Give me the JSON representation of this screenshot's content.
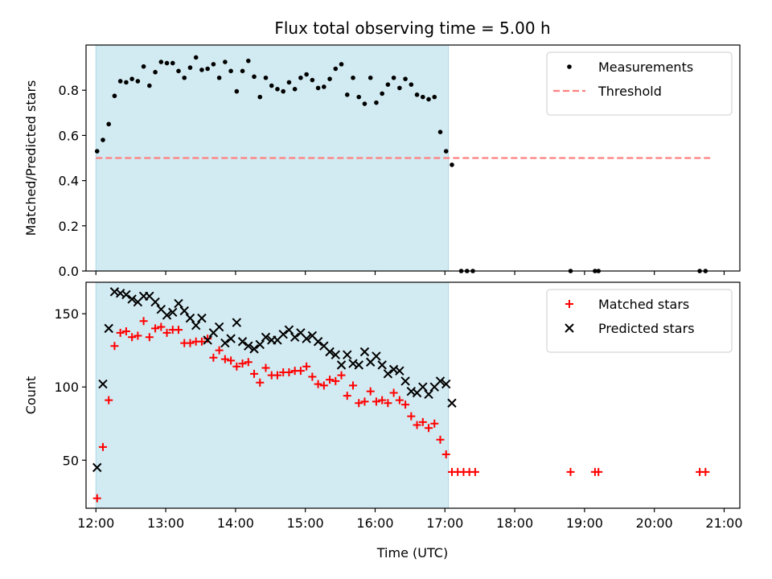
{
  "chart_data": {
    "title": "Flux total observing time = 5.00 h",
    "xlabel": "Time (UTC)",
    "x_tick_labels": [
      "12:00",
      "13:00",
      "14:00",
      "15:00",
      "16:00",
      "17:00",
      "18:00",
      "19:00",
      "20:00",
      "21:00"
    ],
    "shaded_region": {
      "start": "12:00",
      "end": "17:03",
      "color": "#add8e6"
    },
    "panels": [
      {
        "type": "scatter",
        "ylabel": "Matched/Predicted stars",
        "ylim": [
          0,
          1.0
        ],
        "y_ticks": [
          0.0,
          0.2,
          0.4,
          0.6,
          0.8
        ],
        "y_tick_labels": [
          "0.0",
          "0.2",
          "0.4",
          "0.6",
          "0.8"
        ],
        "legend_position": "top-right",
        "threshold": {
          "name": "Threshold",
          "value": 0.5,
          "color": "#ff7f7f",
          "x_range": [
            "12:00",
            "20:48"
          ]
        },
        "series": [
          {
            "name": "Measurements",
            "color": "#000000",
            "marker": "dot",
            "points": [
              [
                "12:01",
                0.53
              ],
              [
                "12:06",
                0.58
              ],
              [
                "12:11",
                0.65
              ],
              [
                "12:16",
                0.775
              ],
              [
                "12:21",
                0.84
              ],
              [
                "12:26",
                0.835
              ],
              [
                "12:31",
                0.85
              ],
              [
                "12:36",
                0.84
              ],
              [
                "12:41",
                0.905
              ],
              [
                "12:46",
                0.82
              ],
              [
                "12:51",
                0.88
              ],
              [
                "12:56",
                0.925
              ],
              [
                "13:01",
                0.92
              ],
              [
                "13:06",
                0.92
              ],
              [
                "13:11",
                0.885
              ],
              [
                "13:16",
                0.855
              ],
              [
                "13:21",
                0.9
              ],
              [
                "13:26",
                0.945
              ],
              [
                "13:31",
                0.89
              ],
              [
                "13:36",
                0.895
              ],
              [
                "13:41",
                0.915
              ],
              [
                "13:46",
                0.855
              ],
              [
                "13:51",
                0.925
              ],
              [
                "13:56",
                0.885
              ],
              [
                "14:01",
                0.795
              ],
              [
                "14:06",
                0.885
              ],
              [
                "14:11",
                0.93
              ],
              [
                "14:16",
                0.86
              ],
              [
                "14:21",
                0.77
              ],
              [
                "14:26",
                0.855
              ],
              [
                "14:31",
                0.82
              ],
              [
                "14:36",
                0.805
              ],
              [
                "14:41",
                0.795
              ],
              [
                "14:46",
                0.835
              ],
              [
                "14:51",
                0.805
              ],
              [
                "14:56",
                0.855
              ],
              [
                "15:01",
                0.87
              ],
              [
                "15:06",
                0.845
              ],
              [
                "15:11",
                0.81
              ],
              [
                "15:16",
                0.815
              ],
              [
                "15:21",
                0.85
              ],
              [
                "15:26",
                0.895
              ],
              [
                "15:31",
                0.915
              ],
              [
                "15:36",
                0.78
              ],
              [
                "15:41",
                0.855
              ],
              [
                "15:46",
                0.77
              ],
              [
                "15:51",
                0.74
              ],
              [
                "15:56",
                0.855
              ],
              [
                "16:01",
                0.745
              ],
              [
                "16:06",
                0.785
              ],
              [
                "16:11",
                0.825
              ],
              [
                "16:16",
                0.855
              ],
              [
                "16:21",
                0.81
              ],
              [
                "16:26",
                0.85
              ],
              [
                "16:31",
                0.825
              ],
              [
                "16:36",
                0.78
              ],
              [
                "16:41",
                0.77
              ],
              [
                "16:46",
                0.76
              ],
              [
                "16:51",
                0.77
              ],
              [
                "16:56",
                0.615
              ],
              [
                "17:01",
                0.53
              ],
              [
                "17:06",
                0.47
              ],
              [
                "17:14",
                0.0
              ],
              [
                "17:19",
                0.0
              ],
              [
                "17:24",
                0.0
              ],
              [
                "18:48",
                0.0
              ],
              [
                "19:09",
                0.0
              ],
              [
                "19:12",
                0.0
              ],
              [
                "20:39",
                0.0
              ],
              [
                "20:44",
                0.0
              ]
            ]
          }
        ]
      },
      {
        "type": "scatter",
        "ylabel": "Count",
        "ylim": [
          17.2,
          171.5
        ],
        "y_ticks": [
          50,
          100,
          150
        ],
        "y_tick_labels": [
          "50",
          "100",
          "150"
        ],
        "legend_position": "top-right",
        "series": [
          {
            "name": "Matched stars",
            "color": "#ff0000",
            "marker": "plus",
            "points": [
              [
                "12:01",
                24
              ],
              [
                "12:06",
                59
              ],
              [
                "12:11",
                91
              ],
              [
                "12:16",
                128
              ],
              [
                "12:21",
                137
              ],
              [
                "12:26",
                138
              ],
              [
                "12:31",
                134
              ],
              [
                "12:36",
                135
              ],
              [
                "12:41",
                145
              ],
              [
                "12:46",
                134
              ],
              [
                "12:51",
                140
              ],
              [
                "12:56",
                141
              ],
              [
                "13:01",
                137
              ],
              [
                "13:06",
                139
              ],
              [
                "13:11",
                139
              ],
              [
                "13:16",
                130
              ],
              [
                "13:21",
                130
              ],
              [
                "13:26",
                131
              ],
              [
                "13:31",
                131
              ],
              [
                "13:36",
                133
              ],
              [
                "13:41",
                120
              ],
              [
                "13:46",
                125
              ],
              [
                "13:51",
                119
              ],
              [
                "13:56",
                118
              ],
              [
                "14:01",
                114
              ],
              [
                "14:06",
                116
              ],
              [
                "14:11",
                117
              ],
              [
                "14:16",
                109
              ],
              [
                "14:21",
                103
              ],
              [
                "14:26",
                113
              ],
              [
                "14:31",
                108
              ],
              [
                "14:36",
                108
              ],
              [
                "14:41",
                110
              ],
              [
                "14:46",
                110
              ],
              [
                "14:51",
                111
              ],
              [
                "14:56",
                111
              ],
              [
                "15:01",
                114
              ],
              [
                "15:06",
                107
              ],
              [
                "15:11",
                102
              ],
              [
                "15:16",
                101
              ],
              [
                "15:21",
                105
              ],
              [
                "15:26",
                104
              ],
              [
                "15:31",
                108
              ],
              [
                "15:36",
                94
              ],
              [
                "15:41",
                101
              ],
              [
                "15:46",
                89
              ],
              [
                "15:51",
                90
              ],
              [
                "15:56",
                97
              ],
              [
                "16:01",
                90
              ],
              [
                "16:06",
                91
              ],
              [
                "16:11",
                89
              ],
              [
                "16:16",
                96
              ],
              [
                "16:21",
                91
              ],
              [
                "16:26",
                88
              ],
              [
                "16:31",
                80
              ],
              [
                "16:36",
                74
              ],
              [
                "16:41",
                76
              ],
              [
                "16:46",
                72
              ],
              [
                "16:51",
                75
              ],
              [
                "16:56",
                64
              ],
              [
                "17:01",
                54
              ],
              [
                "17:06",
                42
              ],
              [
                "17:11",
                42
              ],
              [
                "17:16",
                42
              ],
              [
                "17:21",
                42
              ],
              [
                "17:26",
                42
              ],
              [
                "18:48",
                42
              ],
              [
                "19:09",
                42
              ],
              [
                "19:12",
                42
              ],
              [
                "20:39",
                42
              ],
              [
                "20:44",
                42
              ]
            ]
          },
          {
            "name": "Predicted stars",
            "color": "#000000",
            "marker": "x",
            "points": [
              [
                "12:01",
                45
              ],
              [
                "12:06",
                102
              ],
              [
                "12:11",
                140
              ],
              [
                "12:16",
                165
              ],
              [
                "12:21",
                164
              ],
              [
                "12:26",
                163
              ],
              [
                "12:31",
                160
              ],
              [
                "12:36",
                158
              ],
              [
                "12:41",
                162
              ],
              [
                "12:46",
                162
              ],
              [
                "12:51",
                158
              ],
              [
                "12:56",
                153
              ],
              [
                "13:01",
                149
              ],
              [
                "13:06",
                151
              ],
              [
                "13:11",
                157
              ],
              [
                "13:16",
                152
              ],
              [
                "13:21",
                147
              ],
              [
                "13:26",
                142
              ],
              [
                "13:31",
                147
              ],
              [
                "13:36",
                132
              ],
              [
                "13:41",
                137
              ],
              [
                "13:46",
                141
              ],
              [
                "13:51",
                130
              ],
              [
                "13:56",
                133
              ],
              [
                "14:01",
                144
              ],
              [
                "14:06",
                131
              ],
              [
                "14:11",
                128
              ],
              [
                "14:16",
                126
              ],
              [
                "14:21",
                129
              ],
              [
                "14:26",
                134
              ],
              [
                "14:31",
                132
              ],
              [
                "14:36",
                132
              ],
              [
                "14:41",
                136
              ],
              [
                "14:46",
                139
              ],
              [
                "14:51",
                134
              ],
              [
                "14:56",
                137
              ],
              [
                "15:01",
                133
              ],
              [
                "15:06",
                135
              ],
              [
                "15:11",
                131
              ],
              [
                "15:16",
                128
              ],
              [
                "15:21",
                124
              ],
              [
                "15:26",
                122
              ],
              [
                "15:31",
                115
              ],
              [
                "15:36",
                122
              ],
              [
                "15:41",
                116
              ],
              [
                "15:46",
                115
              ],
              [
                "15:51",
                124
              ],
              [
                "15:56",
                117
              ],
              [
                "16:01",
                121
              ],
              [
                "16:06",
                115
              ],
              [
                "16:11",
                109
              ],
              [
                "16:16",
                112
              ],
              [
                "16:21",
                111
              ],
              [
                "16:26",
                104
              ],
              [
                "16:31",
                97
              ],
              [
                "16:36",
                96
              ],
              [
                "16:41",
                100
              ],
              [
                "16:46",
                95
              ],
              [
                "16:51",
                100
              ],
              [
                "16:56",
                104
              ],
              [
                "17:01",
                102
              ],
              [
                "17:06",
                89
              ]
            ]
          }
        ]
      }
    ]
  }
}
